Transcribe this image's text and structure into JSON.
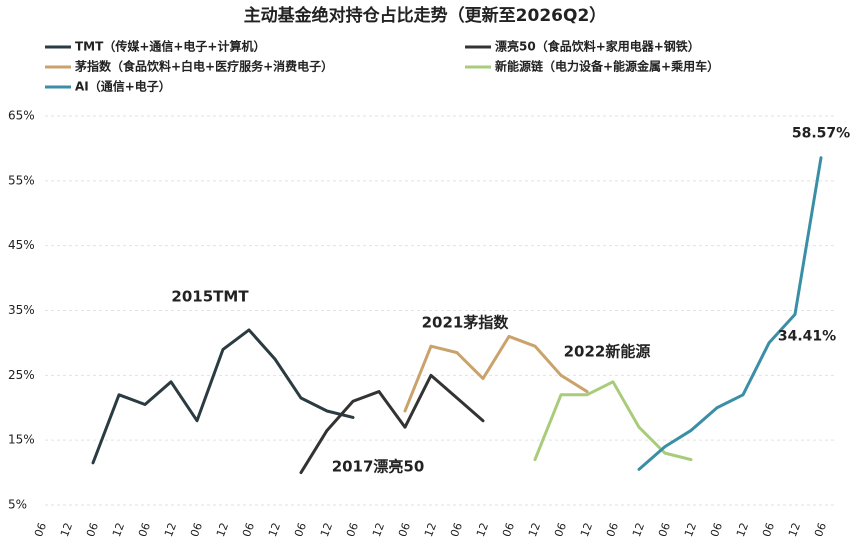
{
  "chart_data": {
    "type": "line",
    "title": "主动基金绝对持仓占比走势（更新至2026Q2）",
    "categories": [
      "06",
      "12",
      "06",
      "12",
      "06",
      "12",
      "06",
      "12",
      "06",
      "12",
      "06",
      "12",
      "06",
      "12",
      "06",
      "12",
      "06",
      "12",
      "06",
      "12",
      "06",
      "12",
      "06",
      "12",
      "06",
      "12",
      "06",
      "12",
      "06",
      "12",
      "06"
    ],
    "series": [
      {
        "name": "TMT（传媒+通信+电子+计算机）",
        "color": "#2b3b42",
        "values": [
          null,
          null,
          11.5,
          22,
          20.5,
          24,
          18,
          29,
          32,
          27.5,
          21.5,
          19.5,
          18.5,
          null,
          null,
          null,
          null,
          null,
          null,
          null,
          null,
          null,
          null,
          null,
          null,
          null,
          null,
          null,
          null,
          null,
          null
        ]
      },
      {
        "name": "漂亮50（食品饮料+家用电器+钢铁）",
        "color": "#333333",
        "values": [
          null,
          null,
          null,
          null,
          null,
          null,
          null,
          null,
          null,
          null,
          10,
          16.5,
          21,
          22.5,
          17,
          25,
          21.5,
          18,
          null,
          null,
          null,
          null,
          null,
          null,
          null,
          null,
          null,
          null,
          null,
          null,
          null
        ]
      },
      {
        "name": "茅指数（食品饮料+白电+医疗服务+消费电子）",
        "color": "#c9a36b",
        "values": [
          null,
          null,
          null,
          null,
          null,
          null,
          null,
          null,
          null,
          null,
          null,
          null,
          null,
          null,
          19.5,
          29.5,
          28.5,
          24.5,
          31,
          29.5,
          25,
          22.5,
          null,
          null,
          null,
          null,
          null,
          null,
          null,
          null,
          null
        ]
      },
      {
        "name": "新能源链（电力设备+能源金属+乘用车）",
        "color": "#a9cc7a",
        "values": [
          null,
          null,
          null,
          null,
          null,
          null,
          null,
          null,
          null,
          null,
          null,
          null,
          null,
          null,
          null,
          null,
          null,
          null,
          null,
          12,
          22,
          22,
          24,
          17,
          13,
          12,
          null,
          null,
          null,
          null,
          null
        ]
      },
      {
        "name": "AI（通信+电子）",
        "color": "#3a8ea6",
        "values": [
          null,
          null,
          null,
          null,
          null,
          null,
          null,
          null,
          null,
          null,
          null,
          null,
          null,
          null,
          null,
          null,
          null,
          null,
          null,
          null,
          null,
          null,
          null,
          10.5,
          14,
          16.5,
          20,
          22,
          30,
          34.41,
          58.57
        ],
        "value_labels": [
          null,
          null,
          null,
          null,
          null,
          null,
          null,
          null,
          null,
          null,
          null,
          null,
          null,
          null,
          null,
          null,
          null,
          null,
          null,
          null,
          null,
          null,
          null,
          null,
          null,
          null,
          null,
          null,
          null,
          "34.41%",
          "58.57%"
        ]
      }
    ],
    "annotations": [
      "2015TMT",
      "2017漂亮50",
      "2021茅指数",
      "2022新能源"
    ],
    "ylim": [
      5,
      65
    ],
    "yticks": [
      {
        "value": 5,
        "label": "5%"
      },
      {
        "value": 15,
        "label": "15%"
      },
      {
        "value": 25,
        "label": "25%"
      },
      {
        "value": 35,
        "label": "35%"
      },
      {
        "value": 45,
        "label": "45%"
      },
      {
        "value": 55,
        "label": "55%"
      },
      {
        "value": 65,
        "label": "65%"
      }
    ],
    "grid": true
  }
}
